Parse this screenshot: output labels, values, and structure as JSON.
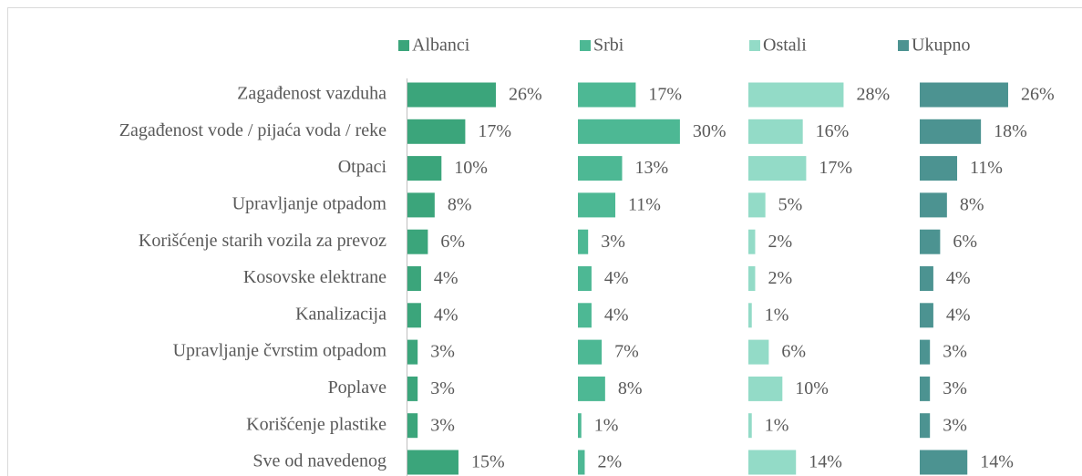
{
  "chart_data": {
    "type": "bar",
    "orientation": "horizontal",
    "legend": "top",
    "categories": [
      "Zagađenost vazduha",
      "Zagađenost vode / pijaća voda / reke",
      "Otpaci",
      "Upravljanje otpadom",
      "Korišćenje starih vozila za prevoz",
      "Kosovske elektrane",
      "Kanalizacija",
      "Upravljanje čvrstim otpadom",
      "Poplave",
      "Korišćenje plastike",
      "Sve od navedenog"
    ],
    "series": [
      {
        "name": "Albanci",
        "color": "#3ba57b",
        "values": [
          26,
          17,
          10,
          8,
          6,
          4,
          4,
          3,
          3,
          3,
          15
        ],
        "value_labels": [
          "26%",
          "17%",
          "10%",
          "8%",
          "6%",
          "4%",
          "4%",
          "3%",
          "3%",
          "3%",
          "15%"
        ]
      },
      {
        "name": "Srbi",
        "color": "#4db894",
        "values": [
          17,
          30,
          13,
          11,
          3,
          4,
          4,
          7,
          8,
          1,
          2
        ],
        "value_labels": [
          "17%",
          "30%",
          "13%",
          "11%",
          "3%",
          "4%",
          "4%",
          "7%",
          "8%",
          "1%",
          "2%"
        ]
      },
      {
        "name": "Ostali",
        "color": "#93dbc7",
        "values": [
          28,
          16,
          17,
          5,
          2,
          2,
          1,
          6,
          10,
          1,
          14
        ],
        "value_labels": [
          "28%",
          "16%",
          "17%",
          "5%",
          "2%",
          "2%",
          "1%",
          "6%",
          "10%",
          "1%",
          "14%"
        ]
      },
      {
        "name": "Ukupno",
        "color": "#4c9391",
        "values": [
          26,
          18,
          11,
          8,
          6,
          4,
          4,
          3,
          3,
          3,
          14
        ],
        "value_labels": [
          "26%",
          "18%",
          "11%",
          "8%",
          "6%",
          "4%",
          "4%",
          "3%",
          "3%",
          "3%",
          "14%"
        ]
      }
    ]
  }
}
